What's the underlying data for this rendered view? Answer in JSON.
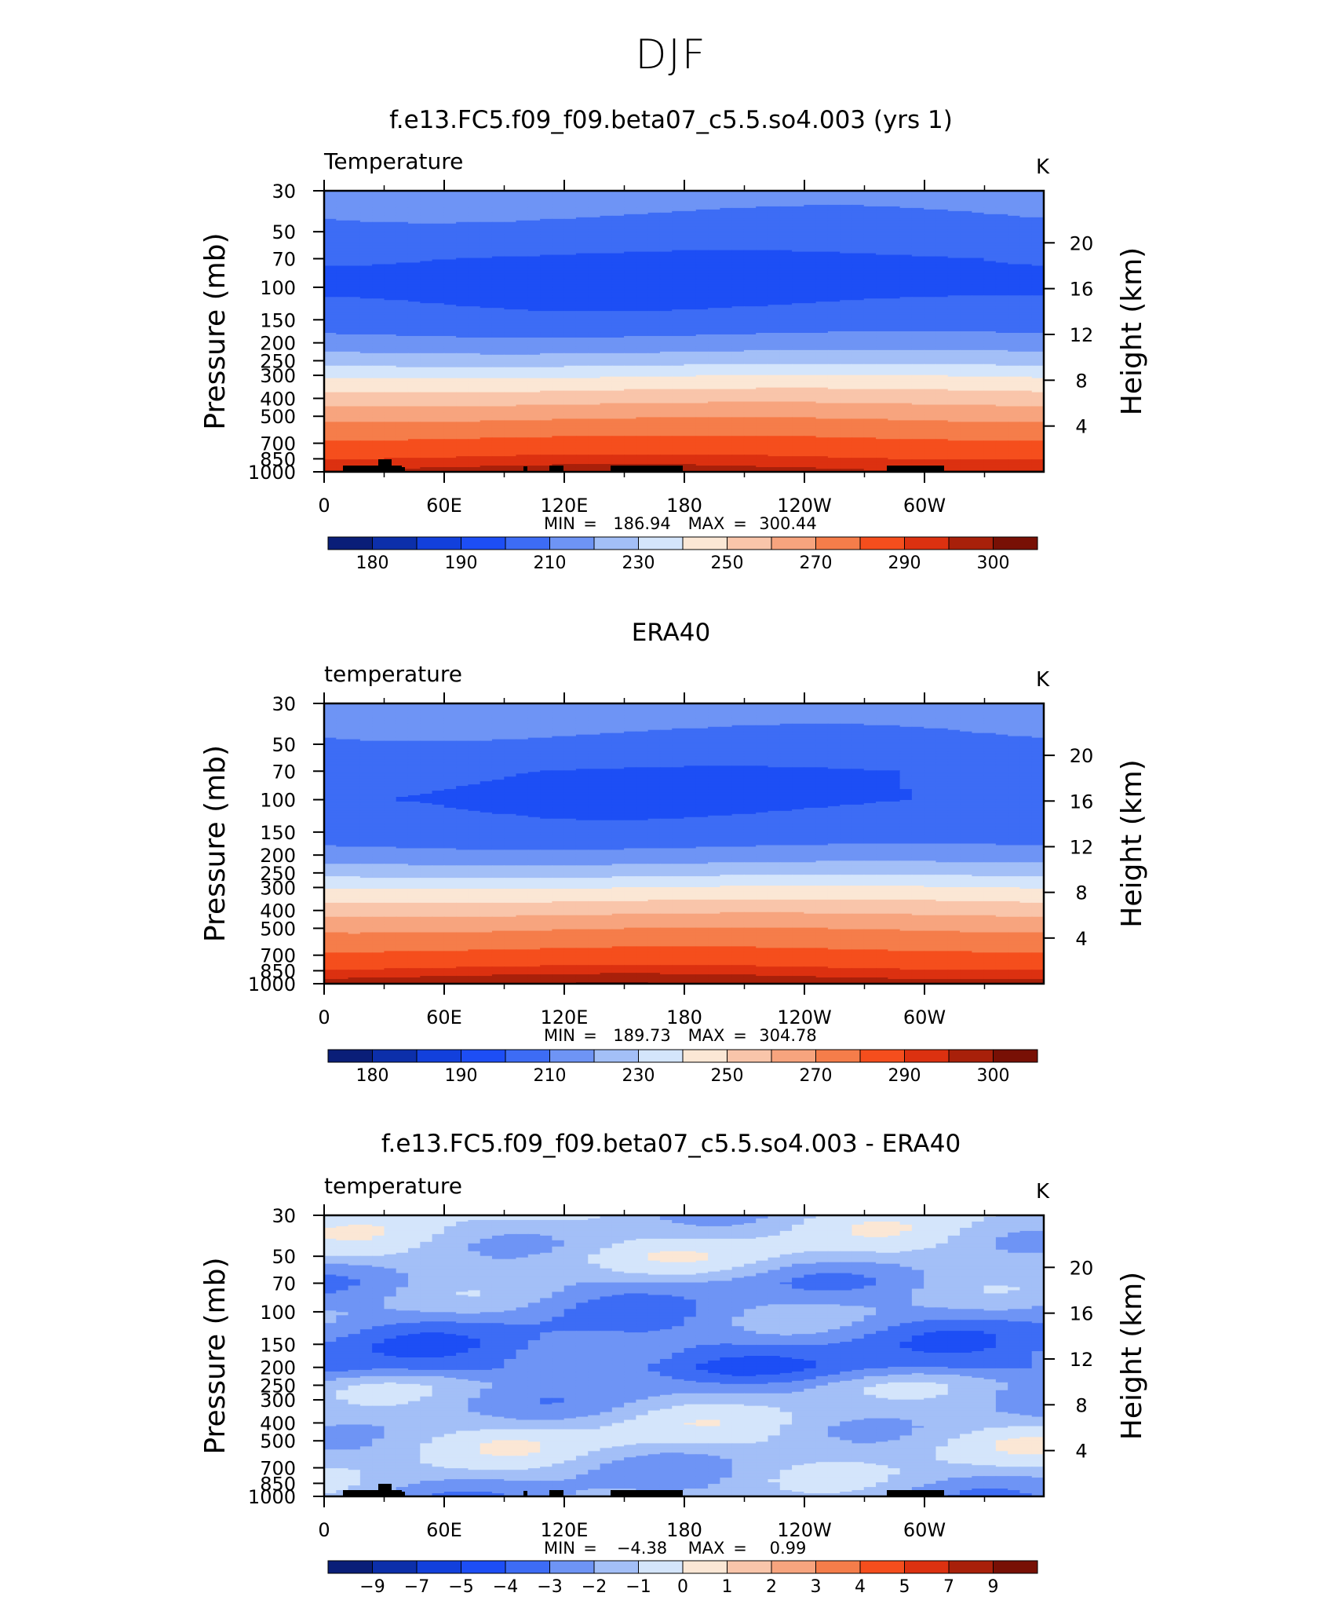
{
  "page_title": "DJF",
  "colors": {
    "temp_levels": [
      "#0A1E78",
      "#0C2FAA",
      "#1240DC",
      "#1D4EF5",
      "#3D6CF5",
      "#6E94F5",
      "#A3BFF7",
      "#D4E5FB",
      "#FBE7D5",
      "#F9C5AA",
      "#F7A47E",
      "#F57D4A",
      "#F54E1D",
      "#DC3110",
      "#A8200A",
      "#781005"
    ],
    "diff_levels": [
      "#0A1E78",
      "#0C2FAA",
      "#1240DC",
      "#1D4EF5",
      "#3D6CF5",
      "#6E94F5",
      "#A3BFF7",
      "#D4E5FB",
      "#FBE7D5",
      "#F9C5AA",
      "#F7A47E",
      "#F57D4A",
      "#F54E1D",
      "#DC3110",
      "#A8200A",
      "#781005"
    ],
    "topography": "#000000"
  },
  "chart_data": [
    {
      "type": "heatmap",
      "title": "f.e13.FC5.f09_f09.beta07_c5.5.so4.003 (yrs 1)",
      "subtitle_left": "Temperature",
      "units": "K",
      "ylabel": "Pressure (mb)",
      "ylabel_right": "Height (km)",
      "xticks": [
        "0",
        "60E",
        "120E",
        "180",
        "120W",
        "60W"
      ],
      "yticks": [
        "30",
        "50",
        "70",
        "100",
        "150",
        "200",
        "250",
        "300",
        "400",
        "500",
        "700",
        "850",
        "1000"
      ],
      "yticks_right": [
        "20",
        "16",
        "12",
        "8",
        "4"
      ],
      "min_label": "MIN",
      "max_label": "MAX",
      "min_value": "186.94",
      "max_value": "300.44",
      "colorbar_labels": [
        "180",
        "190",
        "210",
        "230",
        "250",
        "270",
        "290",
        "300"
      ],
      "ylim": [
        30,
        1000
      ],
      "profile_levels": [
        30,
        50,
        70,
        100,
        150,
        200,
        250,
        300,
        400,
        500,
        700,
        850,
        1000
      ],
      "profile_values": [
        214,
        207,
        199,
        197,
        203,
        214,
        226,
        239,
        256,
        268,
        283,
        291,
        297
      ]
    },
    {
      "type": "heatmap",
      "title": "ERA40",
      "subtitle_left": "temperature",
      "units": "K",
      "ylabel": "Pressure (mb)",
      "ylabel_right": "Height (km)",
      "xticks": [
        "0",
        "60E",
        "120E",
        "180",
        "120W",
        "60W"
      ],
      "yticks": [
        "30",
        "50",
        "70",
        "100",
        "150",
        "200",
        "250",
        "300",
        "400",
        "500",
        "700",
        "850",
        "1000"
      ],
      "yticks_right": [
        "20",
        "16",
        "12",
        "8",
        "4"
      ],
      "min_label": "MIN",
      "max_label": "MAX",
      "min_value": "189.73",
      "max_value": "304.78",
      "colorbar_labels": [
        "180",
        "190",
        "210",
        "230",
        "250",
        "270",
        "290",
        "300"
      ],
      "ylim": [
        30,
        1000
      ],
      "profile_levels": [
        30,
        50,
        70,
        100,
        150,
        200,
        250,
        300,
        400,
        500,
        700,
        850,
        1000
      ],
      "profile_values": [
        215,
        208,
        200,
        199,
        203,
        214,
        227,
        240,
        257,
        269,
        283,
        292,
        299
      ]
    },
    {
      "type": "heatmap",
      "title": "f.e13.FC5.f09_f09.beta07_c5.5.so4.003 - ERA40",
      "subtitle_left": "temperature",
      "units": "K",
      "ylabel": "Pressure (mb)",
      "ylabel_right": "Height (km)",
      "xticks": [
        "0",
        "60E",
        "120E",
        "180",
        "120W",
        "60W"
      ],
      "yticks": [
        "30",
        "50",
        "70",
        "100",
        "150",
        "200",
        "250",
        "300",
        "400",
        "500",
        "700",
        "850",
        "1000"
      ],
      "yticks_right": [
        "20",
        "16",
        "12",
        "8",
        "4"
      ],
      "min_label": "MIN",
      "max_label": "MAX",
      "min_value": "−4.38",
      "max_value": "0.99",
      "colorbar_labels": [
        "−9",
        "−7",
        "−5",
        "−4",
        "−3",
        "−2",
        "−1",
        "0",
        "1",
        "2",
        "3",
        "4",
        "5",
        "7",
        "9"
      ],
      "ylim": [
        30,
        1000
      ],
      "profile_levels": [
        30,
        50,
        70,
        100,
        150,
        200,
        250,
        300,
        400,
        500,
        700,
        850,
        1000
      ],
      "profile_values": [
        -1.2,
        -1.0,
        -2.2,
        -2.4,
        -3.2,
        -3.4,
        -2.0,
        -1.8,
        -1.2,
        -0.9,
        -1.5,
        -1.8,
        -2.0
      ]
    }
  ]
}
